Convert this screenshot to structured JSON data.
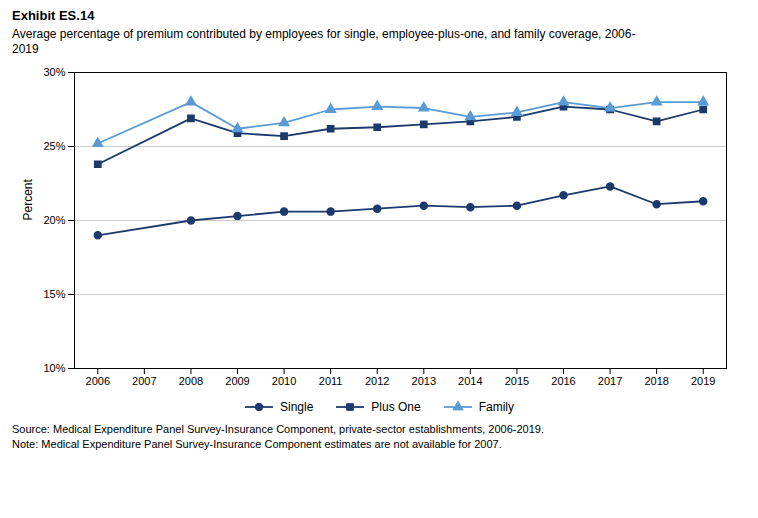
{
  "chart_data": {
    "type": "line",
    "title": "Exhibit ES.14",
    "subtitle": "Average percentage of premium contributed by employees for single, employee-plus-one, and family coverage, 2006-\n2019",
    "y_label": "Percent",
    "x": [
      2006,
      2008,
      2009,
      2010,
      2011,
      2012,
      2013,
      2014,
      2015,
      2016,
      2017,
      2018,
      2019
    ],
    "series": [
      {
        "name": "Single",
        "color": "#1b3a6b",
        "marker": "circle",
        "values": [
          19.0,
          20.0,
          20.3,
          20.6,
          20.6,
          20.8,
          21.0,
          20.9,
          21.0,
          21.7,
          22.3,
          21.1,
          21.3
        ]
      },
      {
        "name": "Plus One",
        "color": "#1b3a6b",
        "marker": "square",
        "values": [
          23.8,
          26.9,
          25.9,
          25.7,
          26.2,
          26.3,
          26.5,
          26.7,
          27.0,
          27.7,
          27.5,
          26.7,
          27.5
        ]
      },
      {
        "name": "Family",
        "color": "#5b9bd5",
        "marker": "triangle",
        "values": [
          25.2,
          28.0,
          26.2,
          26.6,
          27.5,
          27.7,
          27.6,
          27.0,
          27.3,
          28.0,
          27.6,
          28.0,
          28.0
        ]
      }
    ],
    "xlim": [
      2005.5,
      2019.5
    ],
    "xticks": [
      2006,
      2007,
      2008,
      2009,
      2010,
      2011,
      2012,
      2013,
      2014,
      2015,
      2016,
      2017,
      2018,
      2019
    ],
    "ylim": [
      10,
      30
    ],
    "yticks": [
      {
        "value": 10,
        "label": "10%"
      },
      {
        "value": 15,
        "label": "15%"
      },
      {
        "value": 20,
        "label": "20%"
      },
      {
        "value": 25,
        "label": "25%"
      },
      {
        "value": 30,
        "label": "30%"
      }
    ],
    "grid": true,
    "legend": "bottom",
    "annotations": [
      "Source: Medical Expenditure Panel Survey-Insurance Component, private-sector establishments, 2006-2019.",
      "Note: Medical Expenditure Panel Survey-Insurance Component estimates are not available for 2007."
    ]
  }
}
